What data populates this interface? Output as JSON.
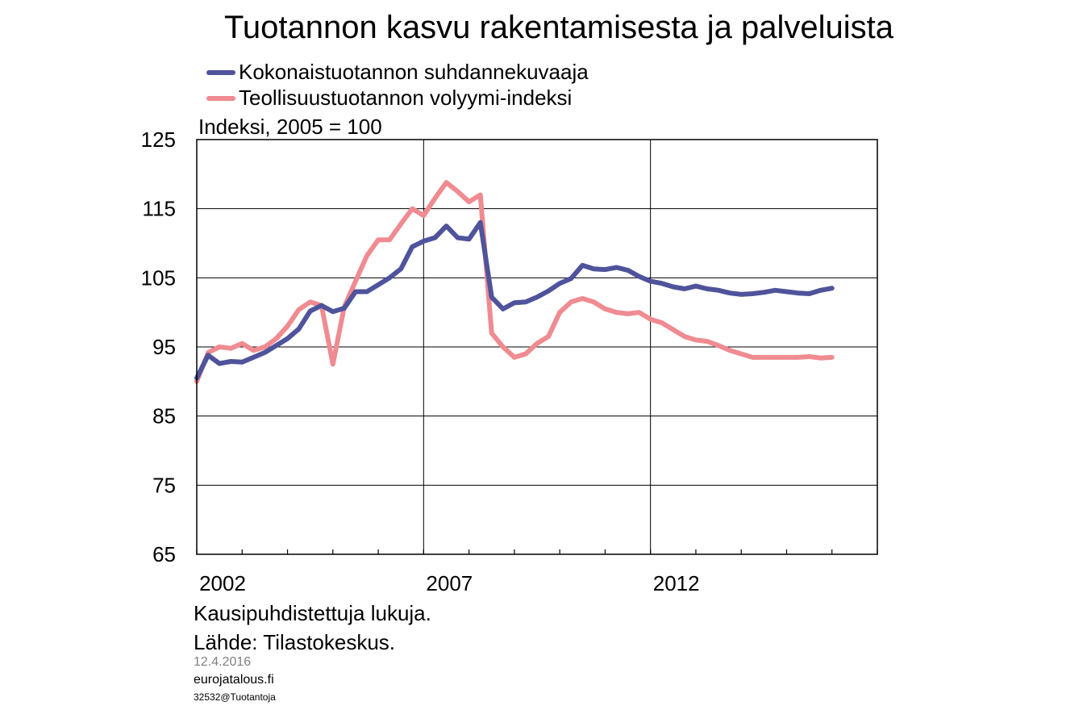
{
  "chart_data": {
    "type": "line",
    "title": "Tuotannon kasvu rakentamisesta ja palveluista",
    "ylabel": "Indeksi, 2005 = 100",
    "xlabel": "",
    "ylim": [
      65,
      125
    ],
    "yticks": [
      65,
      75,
      85,
      95,
      105,
      115,
      125
    ],
    "xlim": [
      2002,
      2017
    ],
    "xticks_labeled": [
      "2002",
      "2007",
      "2012"
    ],
    "grid": true,
    "legend_placement": "top-left",
    "series": [
      {
        "name": "Kokonaistuotannon suhdannekuvaaja",
        "color": "#4f539b",
        "x": [
          2002.0,
          2002.25,
          2002.5,
          2002.75,
          2003.0,
          2003.25,
          2003.5,
          2003.75,
          2004.0,
          2004.25,
          2004.5,
          2004.75,
          2005.0,
          2005.25,
          2005.5,
          2005.75,
          2006.0,
          2006.25,
          2006.5,
          2006.75,
          2007.0,
          2007.25,
          2007.5,
          2007.75,
          2008.0,
          2008.25,
          2008.5,
          2008.75,
          2009.0,
          2009.25,
          2009.5,
          2009.75,
          2010.0,
          2010.25,
          2010.5,
          2010.75,
          2011.0,
          2011.25,
          2011.5,
          2011.75,
          2012.0,
          2012.25,
          2012.5,
          2012.75,
          2013.0,
          2013.25,
          2013.5,
          2013.75,
          2014.0,
          2014.25,
          2014.5,
          2014.75,
          2015.0,
          2015.25,
          2015.5,
          2015.75,
          2016.0
        ],
        "values": [
          90.5,
          93.8,
          92.6,
          92.9,
          92.8,
          93.5,
          94.2,
          95.2,
          96.2,
          97.6,
          100.2,
          101.0,
          100.1,
          100.6,
          103.0,
          103.0,
          104.0,
          105.0,
          106.3,
          109.5,
          110.3,
          110.8,
          112.5,
          110.8,
          110.6,
          113.0,
          102.2,
          100.5,
          101.4,
          101.5,
          102.2,
          103.1,
          104.2,
          104.9,
          106.8,
          106.3,
          106.2,
          106.5,
          106.1,
          105.2,
          104.5,
          104.2,
          103.7,
          103.4,
          103.8,
          103.4,
          103.2,
          102.8,
          102.6,
          102.7,
          102.9,
          103.2,
          103.0,
          102.8,
          102.7,
          103.2,
          103.5
        ]
      },
      {
        "name": "Teollisuustuotannon volyymi-indeksi",
        "color": "#ef8b91",
        "x": [
          2002.0,
          2002.25,
          2002.5,
          2002.75,
          2003.0,
          2003.25,
          2003.5,
          2003.75,
          2004.0,
          2004.25,
          2004.5,
          2004.75,
          2005.0,
          2005.25,
          2005.5,
          2005.75,
          2006.0,
          2006.25,
          2006.5,
          2006.75,
          2007.0,
          2007.25,
          2007.5,
          2007.75,
          2008.0,
          2008.25,
          2008.5,
          2008.75,
          2009.0,
          2009.25,
          2009.5,
          2009.75,
          2010.0,
          2010.25,
          2010.5,
          2010.75,
          2011.0,
          2011.25,
          2011.5,
          2011.75,
          2012.0,
          2012.25,
          2012.5,
          2012.75,
          2013.0,
          2013.25,
          2013.5,
          2013.75,
          2014.0,
          2014.25,
          2014.5,
          2014.75,
          2015.0,
          2015.25,
          2015.5,
          2015.75,
          2016.0
        ],
        "values": [
          90.0,
          94.2,
          95.0,
          94.8,
          95.5,
          94.5,
          95.0,
          96.2,
          98.0,
          100.4,
          101.5,
          101.0,
          92.5,
          100.8,
          104.5,
          108.2,
          110.5,
          110.5,
          112.8,
          115.0,
          114.0,
          116.5,
          118.8,
          117.5,
          116.0,
          117.0,
          97.0,
          95.0,
          93.5,
          94.0,
          95.5,
          96.5,
          100.0,
          101.5,
          102.0,
          101.5,
          100.5,
          100.0,
          99.8,
          100.0,
          99.0,
          98.5,
          97.5,
          96.5,
          96.0,
          95.8,
          95.2,
          94.5,
          94.0,
          93.5,
          93.5,
          93.5,
          93.5,
          93.5,
          93.6,
          93.4,
          93.5
        ]
      }
    ]
  },
  "footer": {
    "note": "Kausipuhdistettuja lukuja.",
    "source": "Lähde: Tilastokeskus.",
    "date": "12.4.2016",
    "site": "eurojatalous.fi",
    "code": "32532@Tuotantoja"
  }
}
